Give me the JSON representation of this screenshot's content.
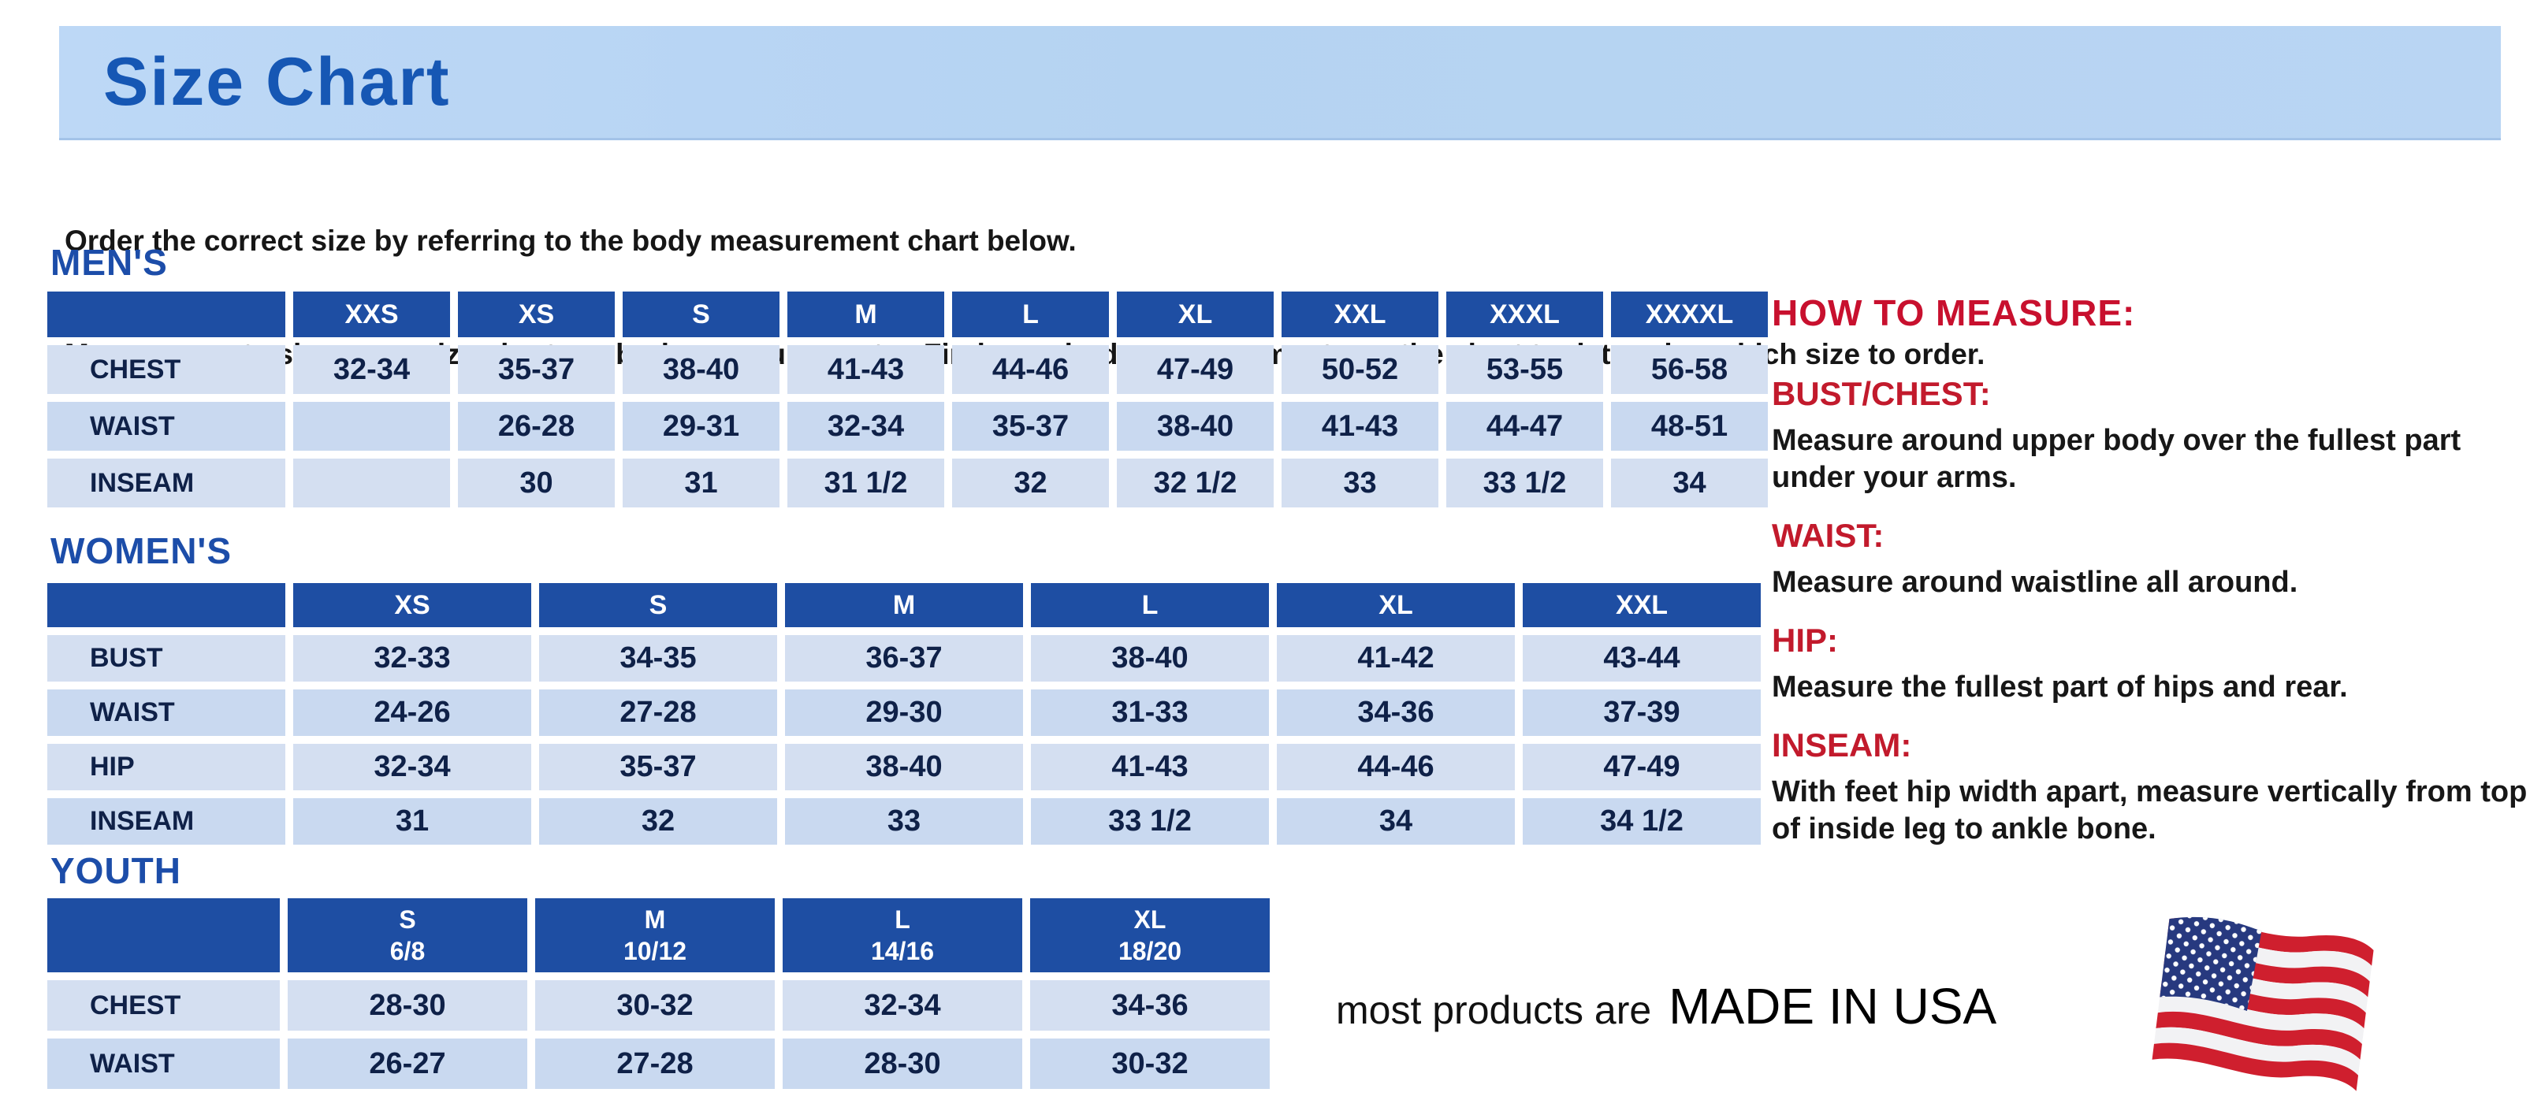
{
  "title_banner": {
    "title": "Size Chart"
  },
  "intro": {
    "line1": "Order the correct size by referring to the body measurement chart below.",
    "line2": "Measurements shown on size chart are body measurements.  Find your body measurements on the chart to determine which size to order."
  },
  "tables": {
    "mens": {
      "section_label": "MEN'S",
      "sizes": [
        "XXS",
        "XS",
        "S",
        "M",
        "L",
        "XL",
        "XXL",
        "XXXL",
        "XXXXL"
      ],
      "rows": [
        {
          "label": "CHEST",
          "values": [
            "32-34",
            "35-37",
            "38-40",
            "41-43",
            "44-46",
            "47-49",
            "50-52",
            "53-55",
            "56-58"
          ]
        },
        {
          "label": "WAIST",
          "values": [
            "",
            "26-28",
            "29-31",
            "32-34",
            "35-37",
            "38-40",
            "41-43",
            "44-47",
            "48-51"
          ]
        },
        {
          "label": "INSEAM",
          "values": [
            "",
            "30",
            "31",
            "31 1/2",
            "32",
            "32 1/2",
            "33",
            "33 1/2",
            "34"
          ]
        }
      ]
    },
    "womens": {
      "section_label": "WOMEN'S",
      "sizes": [
        "XS",
        "S",
        "M",
        "L",
        "XL",
        "XXL"
      ],
      "rows": [
        {
          "label": "BUST",
          "values": [
            "32-33",
            "34-35",
            "36-37",
            "38-40",
            "41-42",
            "43-44"
          ]
        },
        {
          "label": "WAIST",
          "values": [
            "24-26",
            "27-28",
            "29-30",
            "31-33",
            "34-36",
            "37-39"
          ]
        },
        {
          "label": "HIP",
          "values": [
            "32-34",
            "35-37",
            "38-40",
            "41-43",
            "44-46",
            "47-49"
          ]
        },
        {
          "label": "INSEAM",
          "values": [
            "31",
            "32",
            "33",
            "33 1/2",
            "34",
            "34 1/2"
          ]
        }
      ]
    },
    "youth": {
      "section_label": "YOUTH",
      "sizes": [
        "S\n6/8",
        "M\n10/12",
        "L\n14/16",
        "XL\n18/20"
      ],
      "rows": [
        {
          "label": "CHEST",
          "values": [
            "28-30",
            "30-32",
            "32-34",
            "34-36"
          ]
        },
        {
          "label": "WAIST",
          "values": [
            "26-27",
            "27-28",
            "28-30",
            "30-32"
          ]
        }
      ]
    }
  },
  "how_to_measure": {
    "title": "HOW TO MEASURE:",
    "items": [
      {
        "label": "BUST/CHEST:",
        "text": "Measure around upper body over the fullest part under your arms."
      },
      {
        "label": "WAIST:",
        "text": "Measure around waistline all around."
      },
      {
        "label": "HIP:",
        "text": "Measure the fullest part of hips and rear."
      },
      {
        "label": "INSEAM:",
        "text": "With feet hip width apart, measure vertically from top of inside leg to ankle bone."
      }
    ]
  },
  "footer": {
    "prefix": "most products are",
    "emphasis": "MADE IN USA",
    "flag_icon": "us-flag-icon"
  },
  "colors": {
    "banner_blue": "#b8d4f3",
    "title_blue": "#1657b4",
    "section_blue": "#1c4da9",
    "header_blue": "#1e4ea3",
    "cell_light_blue": "#c9d9f0",
    "cell_light_blue_alt": "#d4dff1",
    "cell_text_navy": "#0f2148",
    "accent_red": "#c8102e",
    "flag_red": "#cf1f2e",
    "flag_blue": "#27397f"
  }
}
